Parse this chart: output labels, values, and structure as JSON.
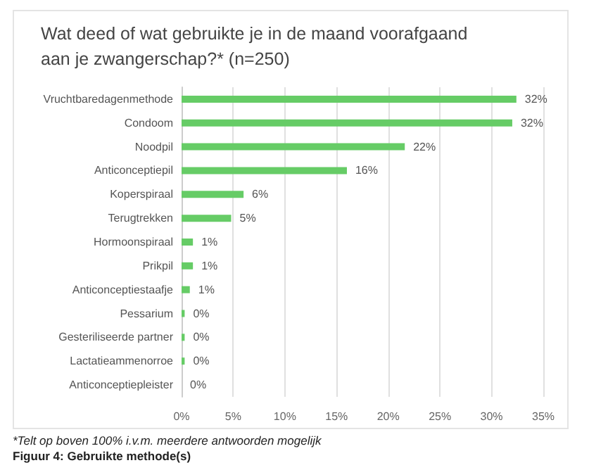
{
  "chart_data": {
    "type": "bar",
    "orientation": "horizontal",
    "title": "Wat deed of wat gebruikte je in de maand voorafgaand aan je zwangerschap?* (n=250)",
    "categories": [
      "Vruchtbaredagenmethode",
      "Condoom",
      "Noodpil",
      "Anticonceptiepil",
      "Koperspiraal",
      "Terugtrekken",
      "Hormoonspiraal",
      "Prikpil",
      "Anticonceptiestaafje",
      "Pessarium",
      "Gesteriliseerde partner",
      "Lactatieammenorroe",
      "Anticonceptiepleister"
    ],
    "values": [
      32.4,
      32.0,
      21.6,
      16.0,
      6.0,
      4.8,
      1.1,
      1.1,
      0.8,
      0.3,
      0.3,
      0.3,
      0
    ],
    "value_labels": [
      "32%",
      "32%",
      "22%",
      "16%",
      "6%",
      "5%",
      "1%",
      "1%",
      "1%",
      "0%",
      "0%",
      "0%",
      "0%"
    ],
    "color": "#66cc66",
    "xlim": [
      0,
      35
    ],
    "xticks": [
      {
        "value": 0,
        "label": "0%"
      },
      {
        "value": 5,
        "label": "5%"
      },
      {
        "value": 10,
        "label": "10%"
      },
      {
        "value": 15,
        "label": "15%"
      },
      {
        "value": 20,
        "label": "20%"
      },
      {
        "value": 25,
        "label": "25%"
      },
      {
        "value": 30,
        "label": "30%"
      },
      {
        "value": 35,
        "label": "35%"
      }
    ],
    "grid": "x",
    "annotations": [
      "*Telt op boven 100% i.v.m. meerdere antwoorden mogelijk",
      "Figuur 4: Gebruikte methode(s)"
    ]
  }
}
